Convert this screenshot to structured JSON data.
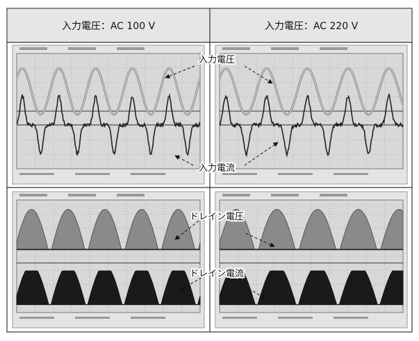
{
  "table": {
    "header": [
      "入力電圧：AC 100 V",
      "入力電圧：AC 220 V"
    ]
  },
  "annotations": {
    "input_voltage": "入力電圧",
    "input_current": "入力電流",
    "drain_voltage": "ドレイン電圧",
    "drain_current": "ドレイン電流"
  }
}
